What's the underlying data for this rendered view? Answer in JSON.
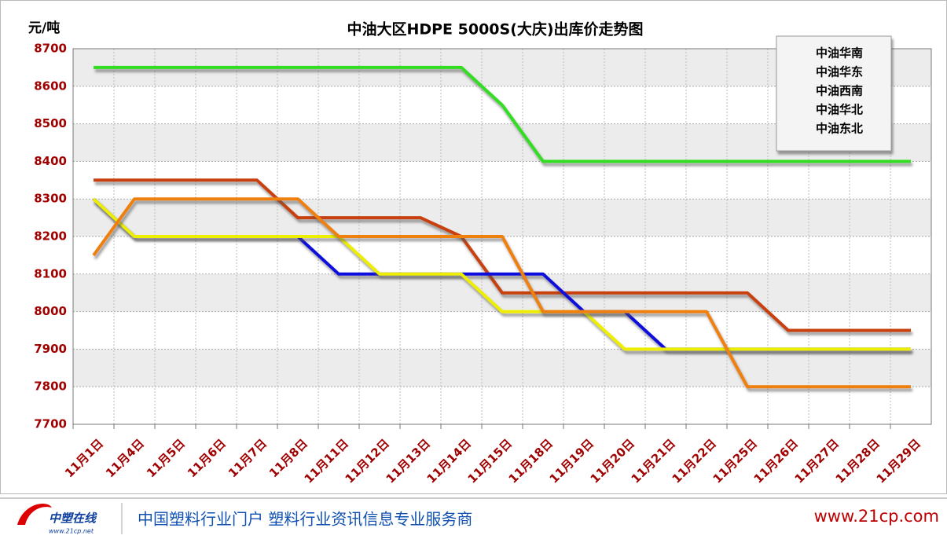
{
  "chart_data": {
    "type": "line",
    "title": "中油大区HDPE 5000S(大庆)出库价走势图",
    "y_label": "元/吨",
    "categories": [
      "11月1日",
      "11月4日",
      "11月5日",
      "11月6日",
      "11月7日",
      "11月8日",
      "11月11日",
      "11月12日",
      "11月13日",
      "11月14日",
      "11月15日",
      "11月18日",
      "11月19日",
      "11月20日",
      "11月21日",
      "11月22日",
      "11月25日",
      "11月26日",
      "11月27日",
      "11月28日",
      "11月29日"
    ],
    "series": [
      {
        "name": "中油华南",
        "color": "#33dd22",
        "values": [
          8650,
          8650,
          8650,
          8650,
          8650,
          8650,
          8650,
          8650,
          8650,
          8650,
          8550,
          8400,
          8400,
          8400,
          8400,
          8400,
          8400,
          8400,
          8400,
          8400,
          8400
        ]
      },
      {
        "name": "中油华东",
        "color": "#c8400e",
        "values": [
          8350,
          8350,
          8350,
          8350,
          8350,
          8250,
          8250,
          8250,
          8250,
          8200,
          8050,
          8050,
          8050,
          8050,
          8050,
          8050,
          8050,
          7950,
          7950,
          7950,
          7950
        ]
      },
      {
        "name": "中油西南",
        "color": "#1111dd",
        "values": [
          8300,
          8200,
          8200,
          8200,
          8200,
          8200,
          8100,
          8100,
          8100,
          8100,
          8100,
          8100,
          8000,
          8000,
          7900,
          7900,
          7900,
          7900,
          7900,
          7900,
          7900
        ]
      },
      {
        "name": "中油华北",
        "color": "#eeee00",
        "values": [
          8300,
          8200,
          8200,
          8200,
          8200,
          8200,
          8200,
          8100,
          8100,
          8100,
          8000,
          8000,
          8000,
          7900,
          7900,
          7900,
          7900,
          7900,
          7900,
          7900,
          7900
        ]
      },
      {
        "name": "中油东北",
        "color": "#f08010",
        "values": [
          8150,
          8300,
          8300,
          8300,
          8300,
          8300,
          8200,
          8200,
          8200,
          8200,
          8200,
          8000,
          8000,
          8000,
          8000,
          8000,
          7800,
          7800,
          7800,
          7800,
          7800
        ]
      }
    ],
    "ylim": [
      7700,
      8700
    ],
    "yticks": [
      7700,
      7800,
      7900,
      8000,
      8100,
      8200,
      8300,
      8400,
      8500,
      8600,
      8700
    ],
    "grid": true,
    "legend": "top-right"
  },
  "footer": {
    "logo": "中塑在线",
    "logo_url": "www.21cp.net",
    "slogan": "中国塑料行业门户 塑料行业资讯信息专业服务商",
    "url": "www.21cp.com"
  }
}
